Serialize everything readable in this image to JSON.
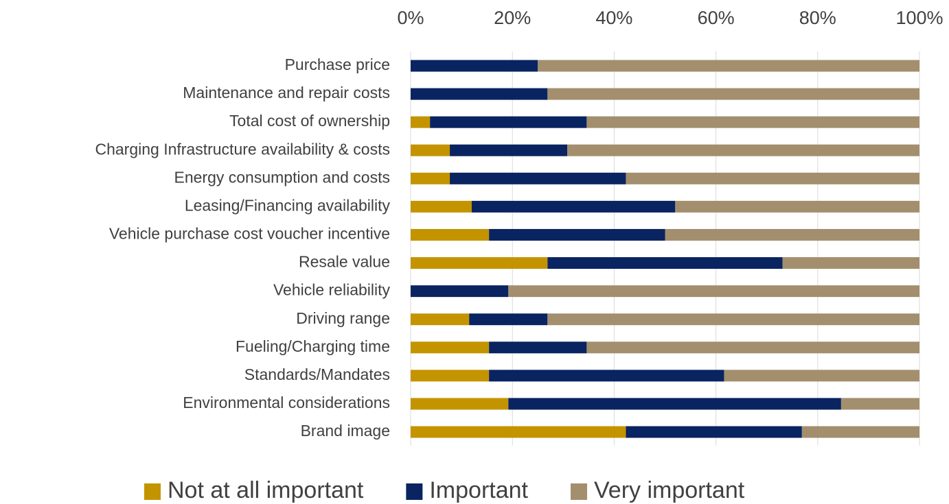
{
  "chart_data": {
    "type": "stacked-bar-horizontal",
    "categories": [
      "Purchase price",
      "Maintenance and repair costs",
      "Total cost of ownership",
      "Charging Infrastructure availability & costs",
      "Energy consumption and costs",
      "Leasing/Financing availability",
      "Vehicle purchase cost voucher incentive",
      "Resale value",
      "Vehicle reliability",
      "Driving range",
      "Fueling/Charging time",
      "Standards/Mandates",
      "Environmental considerations",
      "Brand image"
    ],
    "series": [
      {
        "name": "Not at all important",
        "color": "#c39400",
        "values": [
          0,
          0,
          3.8,
          7.7,
          7.7,
          12.0,
          15.4,
          26.9,
          0,
          11.5,
          15.4,
          15.4,
          19.2,
          42.3
        ]
      },
      {
        "name": "Important",
        "color": "#0a2461",
        "values": [
          25.0,
          26.9,
          30.8,
          23.1,
          34.6,
          40.0,
          34.6,
          46.2,
          19.2,
          15.4,
          19.2,
          46.2,
          65.4,
          34.6
        ]
      },
      {
        "name": "Very important",
        "color": "#a38f6d",
        "values": [
          75.0,
          73.1,
          65.4,
          69.2,
          57.7,
          48.0,
          50.0,
          26.9,
          80.8,
          73.1,
          65.4,
          38.4,
          15.4,
          23.1
        ]
      }
    ],
    "xlim": [
      0,
      100
    ],
    "xticks": [
      {
        "value": 0,
        "label": "0%"
      },
      {
        "value": 20,
        "label": "20%"
      },
      {
        "value": 40,
        "label": "40%"
      },
      {
        "value": 60,
        "label": "60%"
      },
      {
        "value": 80,
        "label": "80%"
      },
      {
        "value": 100,
        "label": "100%"
      }
    ],
    "grid": true,
    "legend": "bottom"
  }
}
